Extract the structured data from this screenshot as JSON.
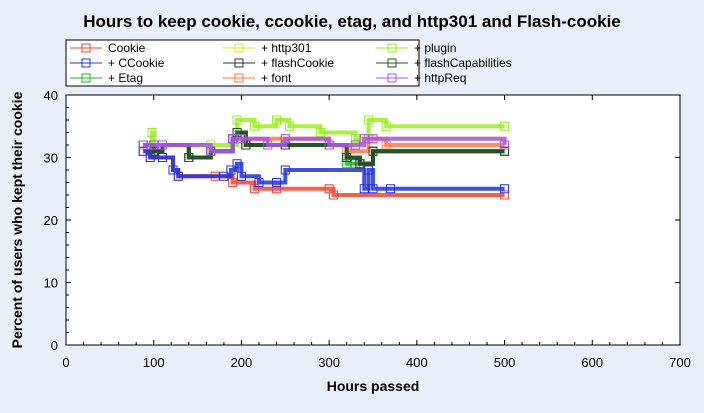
{
  "chart_data": {
    "type": "line",
    "title": "Hours to keep cookie, ccookie, etag, and http301 and Flash-cookie",
    "xlabel": "Hours passed",
    "ylabel": "Percent of users who kept their cookie",
    "xlim": [
      0,
      700
    ],
    "ylim": [
      0,
      40
    ],
    "xticks": [
      0,
      100,
      200,
      300,
      400,
      500,
      600,
      700
    ],
    "yticks": [
      0,
      10,
      20,
      30,
      40
    ],
    "grid": false,
    "legend": "top",
    "marker": "hollow-square",
    "series": [
      {
        "name": "Cookie",
        "color": "#ee4433",
        "x": [
          88,
          96,
          110,
          122,
          128,
          170,
          190,
          215,
          240,
          300,
          305,
          500
        ],
        "y": [
          31,
          30,
          30,
          28,
          27,
          27,
          26,
          25,
          25,
          25,
          24,
          24
        ]
      },
      {
        "name": "+ CCookie",
        "color": "#2233dd",
        "x": [
          88,
          96,
          110,
          122,
          128,
          180,
          188,
          195,
          200,
          220,
          240,
          250,
          340,
          345,
          350,
          370,
          500
        ],
        "y": [
          31,
          30,
          30,
          28,
          27,
          27,
          28,
          29,
          27,
          26,
          26,
          28,
          25,
          28,
          25,
          25,
          25
        ]
      },
      {
        "name": "+ Etag",
        "color": "#22bb22",
        "x": [
          88,
          100,
          110,
          140,
          165,
          190,
          195,
          205,
          250,
          300,
          320,
          330,
          350,
          500
        ],
        "y": [
          32,
          31,
          32,
          30,
          31,
          33,
          34,
          32,
          32,
          32,
          29,
          29,
          31,
          31
        ]
      },
      {
        "name": "+ http301",
        "color": "#eedd22",
        "x": [
          88,
          100,
          110,
          165,
          190,
          200,
          230,
          250,
          300,
          330,
          340,
          350,
          500
        ],
        "y": [
          32,
          32,
          32,
          31,
          33,
          33,
          32,
          33,
          32,
          32,
          33,
          33,
          32
        ]
      },
      {
        "name": "+ flashCookie",
        "color": "#333333",
        "x": [
          88,
          100,
          110,
          140,
          165,
          190,
          195,
          205,
          250,
          300,
          320,
          335,
          350,
          500
        ],
        "y": [
          32,
          31,
          32,
          30,
          31,
          33,
          34,
          32,
          32,
          32,
          30,
          29,
          31,
          31
        ]
      },
      {
        "name": "+ font",
        "color": "#ff7744",
        "x": [
          88,
          100,
          110,
          165,
          190,
          200,
          300,
          320,
          345,
          350,
          365,
          500
        ],
        "y": [
          32,
          32,
          32,
          31,
          33,
          33,
          32,
          31,
          33,
          33,
          32,
          32
        ]
      },
      {
        "name": "+ plugin",
        "color": "#99ee22",
        "x": [
          88,
          98,
          100,
          110,
          165,
          195,
          215,
          240,
          255,
          290,
          330,
          345,
          365,
          500
        ],
        "y": [
          32,
          34,
          32,
          32,
          32,
          36,
          35,
          36,
          35,
          34,
          33,
          36,
          35,
          35
        ]
      },
      {
        "name": "+ flashCapabilities",
        "color": "#225522",
        "x": [
          88,
          100,
          110,
          140,
          165,
          190,
          195,
          205,
          250,
          300,
          320,
          335,
          350,
          500
        ],
        "y": [
          32,
          31,
          32,
          30,
          31,
          33,
          34,
          32,
          32,
          32,
          30,
          29,
          31,
          31
        ]
      },
      {
        "name": "+ httpReq",
        "color": "#aa55ee",
        "x": [
          88,
          100,
          110,
          165,
          190,
          200,
          230,
          250,
          300,
          330,
          340,
          350,
          500
        ],
        "y": [
          32,
          32,
          32,
          31,
          33,
          33,
          32,
          33,
          32,
          32,
          33,
          33,
          32
        ]
      }
    ]
  }
}
